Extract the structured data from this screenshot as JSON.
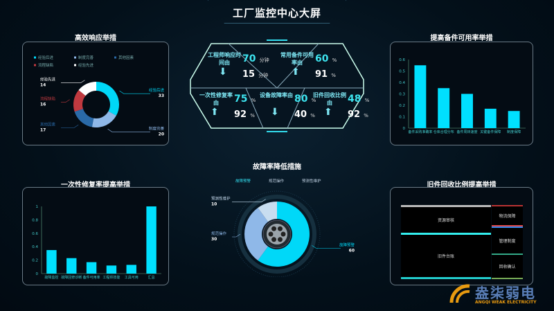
{
  "header": {
    "title": "工厂监控中心大屏"
  },
  "kpis": [
    {
      "label": "工程师响应时间由",
      "from": "70",
      "from_unit": "分钟",
      "to": "15",
      "to_unit": "分钟",
      "direction": "down"
    },
    {
      "label": "常用备件可用率由",
      "from": "60",
      "from_unit": "%",
      "to": "91",
      "to_unit": "%",
      "direction": "up"
    },
    {
      "label": "一次性修复率由",
      "from": "75",
      "from_unit": "%",
      "to": "92",
      "to_unit": "%",
      "direction": "up"
    },
    {
      "label": "设备故障率由",
      "from": "80",
      "from_unit": "%",
      "to": "40",
      "to_unit": "%",
      "direction": "down"
    },
    {
      "label": "旧件回收比例由",
      "from": "48",
      "from_unit": "%",
      "to": "92",
      "to_unit": "%",
      "direction": "up"
    }
  ],
  "chart_data": [
    {
      "id": "response",
      "title": "高效响应举措",
      "type": "pie",
      "donut": true,
      "legend": "top",
      "categories": [
        "经验后进",
        "制度完善",
        "其他因素",
        "流程缺陷",
        "经验先进"
      ],
      "values": [
        33,
        20,
        17,
        16,
        14
      ],
      "colors": [
        "#00d8f8",
        "#8fb8e8",
        "#2a6aa8",
        "#c0393f",
        "#ffffff"
      ]
    },
    {
      "id": "spare",
      "title": "提高备件可用率举措",
      "type": "bar",
      "categories": [
        "备件采购准确率",
        "仓库合理分布",
        "备件周转速度",
        "关键备件保障",
        "制度保障"
      ],
      "values": [
        0.55,
        0.35,
        0.3,
        0.17,
        0.15
      ],
      "ylim": [
        0,
        0.6
      ],
      "yticks": [
        "0",
        "0.1",
        "0.2",
        "0.3",
        "0.4",
        "0.5",
        "0.6"
      ],
      "color": "#00e0ff"
    },
    {
      "id": "fix",
      "title": "一次性修复率提高举措",
      "type": "bar",
      "categories": [
        "故障监控",
        "故障回修诊断",
        "备件可用率",
        "工程师技能",
        "工具可用",
        "汇总"
      ],
      "values": [
        0.35,
        0.23,
        0.17,
        0.12,
        0.13,
        1.0
      ],
      "ylim": [
        0,
        1
      ],
      "yticks": [
        "0",
        "0.2",
        "0.4",
        "0.6",
        "0.8",
        "1"
      ],
      "color": "#00e0ff"
    },
    {
      "id": "fault",
      "title": "故障率降低措施",
      "type": "pie",
      "donut": true,
      "legend": "top",
      "categories": [
        "故障预警",
        "规范操作",
        "预测性维护"
      ],
      "values": [
        60,
        30,
        10
      ],
      "colors": [
        "#00d8f8",
        "#8fb8e8",
        "#c8ddf0"
      ]
    },
    {
      "id": "recycle",
      "title": "旧件回收比例提高举措",
      "type": "treemap",
      "items": [
        "资源审核",
        "旧件台账",
        "物流保障",
        "管理制度",
        "回收确认"
      ]
    }
  ],
  "watermark": {
    "brand": "盎柒弱电",
    "sub": "ANGQI WEAK ELECTRICITY"
  }
}
